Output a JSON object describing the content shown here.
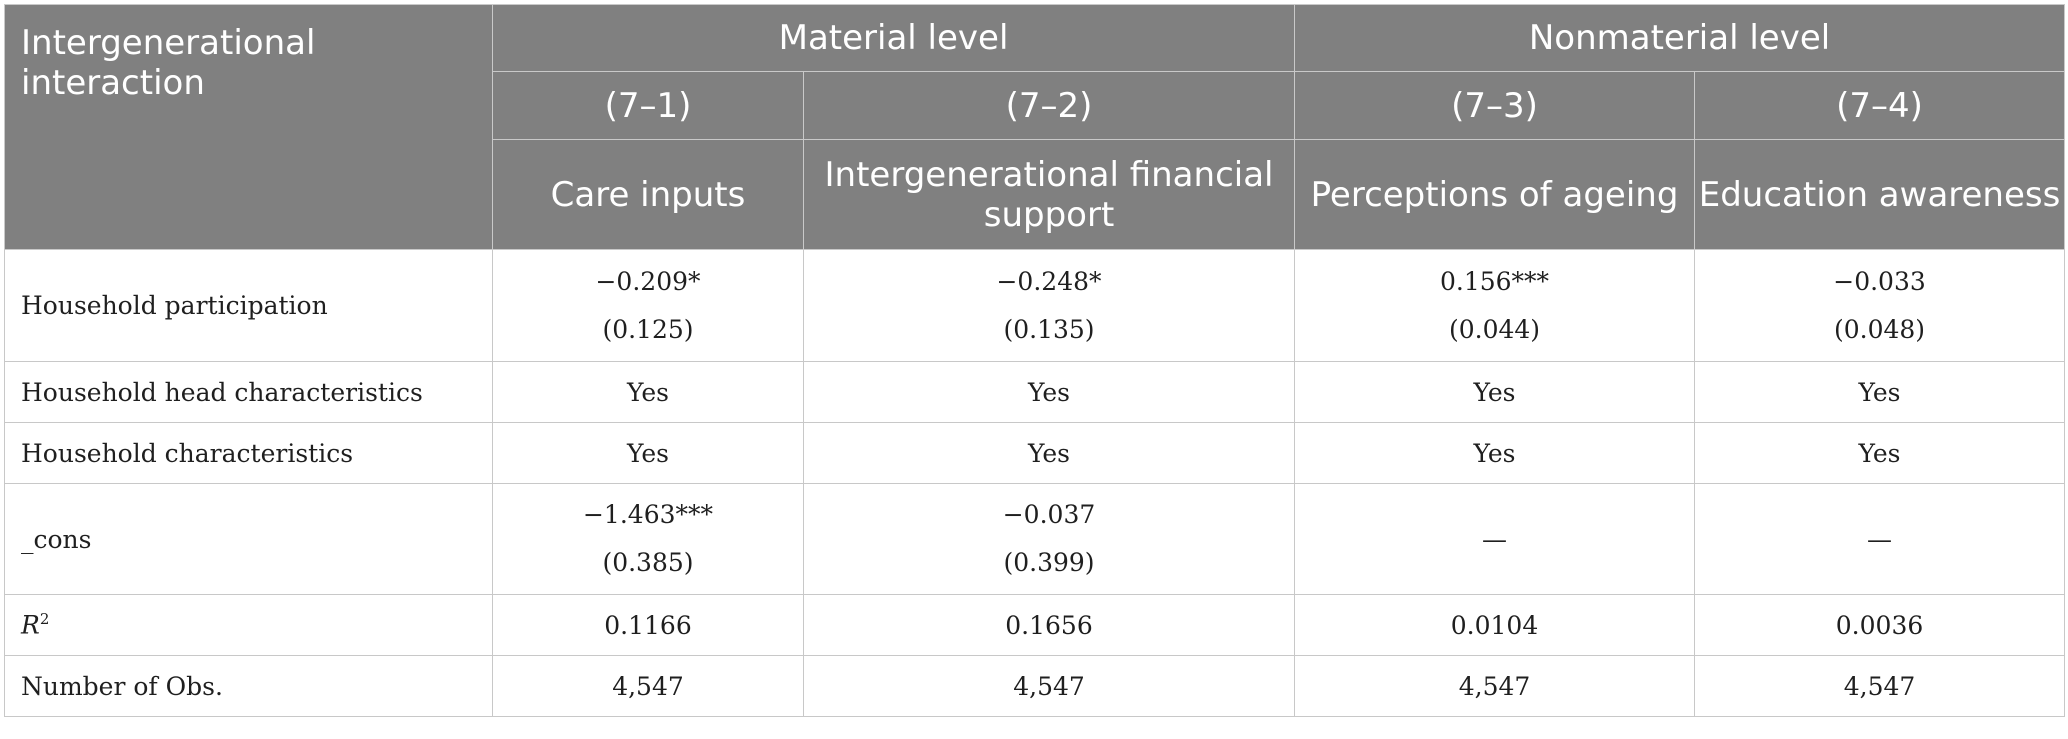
{
  "header": {
    "corner": "Intergenerational interaction",
    "groups": [
      "Material level",
      "Nonmaterial level"
    ],
    "models": [
      "(7–1)",
      "(7–2)",
      "(7–3)",
      "(7–4)"
    ],
    "outcomes": [
      "Care inputs",
      "Intergenerational financial support",
      "Perceptions of ageing",
      "Education awareness"
    ]
  },
  "rows": {
    "participation": {
      "label": "Household participation",
      "coef": [
        "−0.209*",
        "−0.248*",
        "0.156***",
        "−0.033"
      ],
      "se": [
        "(0.125)",
        "(0.135)",
        "(0.044)",
        "(0.048)"
      ]
    },
    "head": {
      "label": "Household head characteristics",
      "values": [
        "Yes",
        "Yes",
        "Yes",
        "Yes"
      ]
    },
    "household": {
      "label": "Household characteristics",
      "values": [
        "Yes",
        "Yes",
        "Yes",
        "Yes"
      ]
    },
    "cons": {
      "label": "_cons",
      "coef": [
        "−1.463***",
        "−0.037"
      ],
      "se": [
        "(0.385)",
        "(0.399)"
      ],
      "dash": [
        "—",
        "—"
      ]
    },
    "r2": {
      "label_r": "R",
      "label_sup": "2",
      "values": [
        "0.1166",
        "0.1656",
        "0.0104",
        "0.0036"
      ]
    },
    "obs": {
      "label": "Number of Obs.",
      "values": [
        "4,547",
        "4,547",
        "4,547",
        "4,547"
      ]
    }
  }
}
